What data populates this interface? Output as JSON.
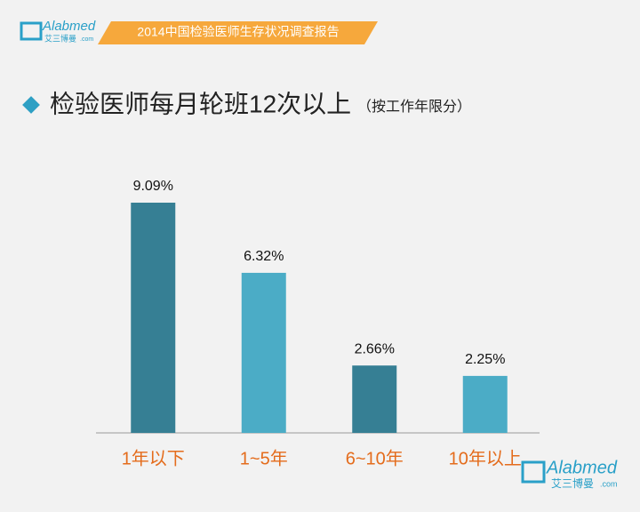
{
  "header": {
    "logo": {
      "brand": "Alabmed",
      "cn": "艾三博曼",
      "domain": ".com"
    },
    "banner": "2014中国检验医师生存状况调查报告"
  },
  "chart_data": {
    "type": "bar",
    "title": "检验医师每月轮班12次以上",
    "subtitle": "（按工作年限分）",
    "categories": [
      "1年以下",
      "1~5年",
      "6~10年",
      "10年以上"
    ],
    "values": [
      9.09,
      6.32,
      2.66,
      2.25
    ],
    "value_labels": [
      "9.09%",
      "6.32%",
      "2.66%",
      "2.25%"
    ],
    "colors": [
      "#367f94",
      "#4bacc6",
      "#367f94",
      "#4bacc6"
    ]
  },
  "footer": {
    "logo": {
      "brand": "Alabmed",
      "cn": "艾三博曼",
      "domain": ".com"
    }
  }
}
